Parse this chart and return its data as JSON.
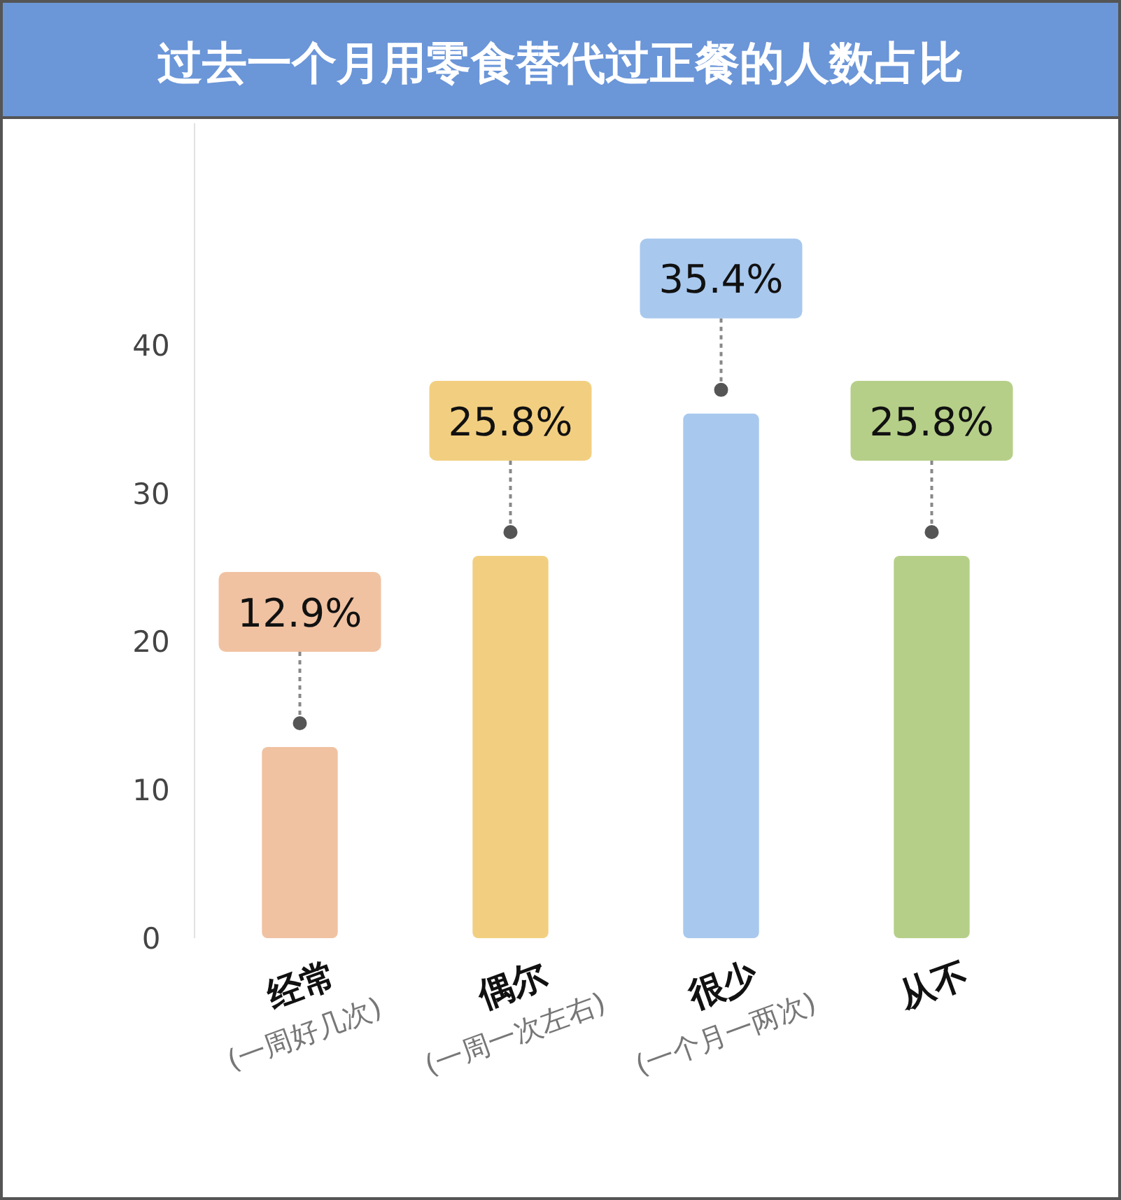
{
  "chart_data": {
    "type": "bar",
    "title": "过去一个月用零食替代过正餐的人数占比",
    "categories": [
      "经常\n(一周好几次)",
      "偶尔\n(一周一次左右)",
      "很少\n(一个月一两次)",
      "从不"
    ],
    "values": [
      12.9,
      25.8,
      35.4,
      25.8
    ],
    "colors": [
      "#f0c2a2",
      "#f2cf80",
      "#a8c8ee",
      "#b5cf88"
    ],
    "value_labels": [
      "12.9%",
      "25.8%",
      "35.4%",
      "25.8%"
    ],
    "ylim": [
      0,
      55
    ],
    "yticks": [
      0,
      10,
      20,
      30,
      40
    ],
    "grid": false
  }
}
